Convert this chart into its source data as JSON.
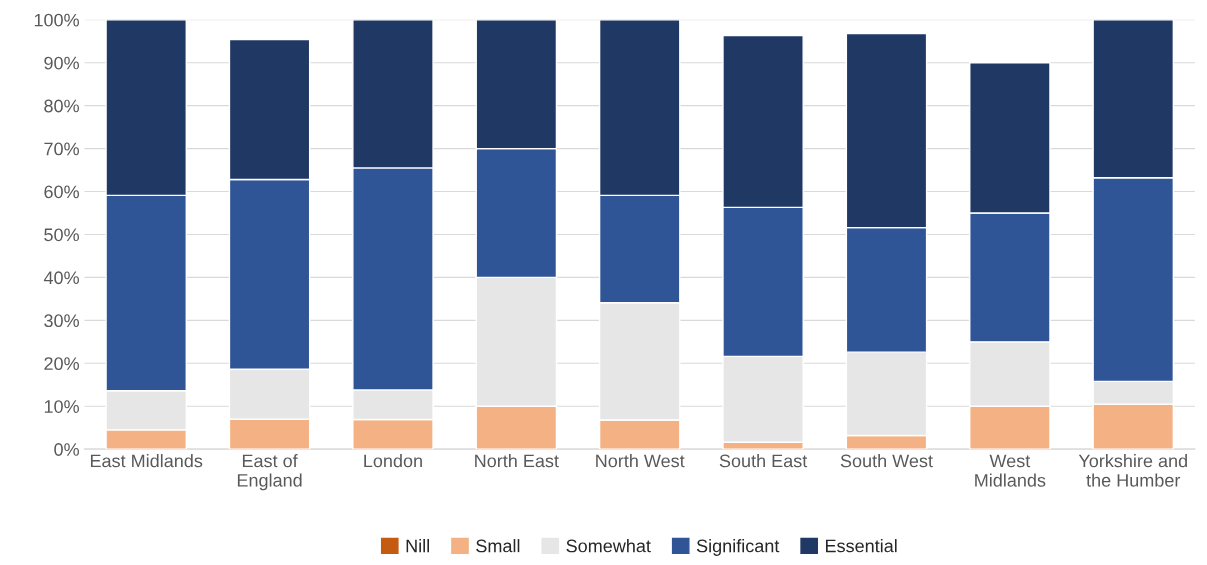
{
  "chart_data": {
    "type": "bar",
    "stacked": true,
    "categories": [
      "East Midlands",
      "East of\nEngland",
      "London",
      "North East",
      "North West",
      "South East",
      "South West",
      "West\nMidlands",
      "Yorkshire and\nthe Humber"
    ],
    "series": [
      {
        "name": "Nill",
        "color": "#c55a11",
        "values": [
          0,
          0,
          0,
          0,
          0,
          0,
          0,
          0,
          0
        ]
      },
      {
        "name": "Small",
        "color": "#f4b183",
        "values": [
          4.5,
          7.0,
          6.9,
          10,
          6.8,
          1.6,
          3.2,
          10,
          10.5
        ]
      },
      {
        "name": "Somewhat",
        "color": "#e7e6e6",
        "values": [
          9.1,
          11.6,
          6.9,
          30,
          27.3,
          20.0,
          19.4,
          15,
          5.3
        ]
      },
      {
        "name": "Significant",
        "color": "#2f5597",
        "values": [
          45.5,
          44.2,
          51.7,
          30,
          25.0,
          34.7,
          29.0,
          30,
          47.4
        ]
      },
      {
        "name": "Essential",
        "color": "#203864",
        "values": [
          40.9,
          32.6,
          34.5,
          30,
          40.9,
          40.0,
          45.2,
          35,
          36.8
        ]
      }
    ],
    "ylim": [
      0,
      100
    ],
    "yticks": [
      {
        "value": 0,
        "label": "0%"
      },
      {
        "value": 10,
        "label": "10%"
      },
      {
        "value": 20,
        "label": "20%"
      },
      {
        "value": 30,
        "label": "30%"
      },
      {
        "value": 40,
        "label": "40%"
      },
      {
        "value": 50,
        "label": "50%"
      },
      {
        "value": 60,
        "label": "60%"
      },
      {
        "value": 70,
        "label": "70%"
      },
      {
        "value": 80,
        "label": "80%"
      },
      {
        "value": 90,
        "label": "90%"
      },
      {
        "value": 100,
        "label": "100%"
      }
    ],
    "grid": "y",
    "legend": "bottom"
  }
}
